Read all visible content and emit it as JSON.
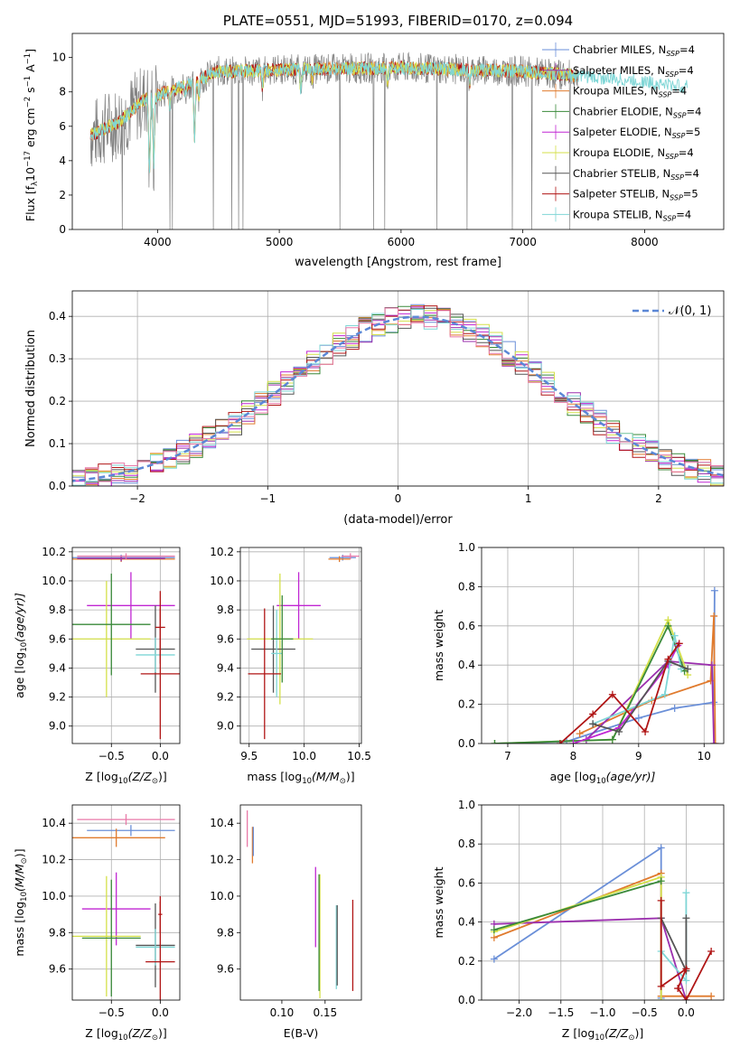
{
  "colors": {
    "Chabrier MILES": "#6a8fd8",
    "Salpeter MILES": "#9b2fae",
    "Kroupa MILES": "#e07b2e",
    "Chabrier ELODIE": "#3a8a3a",
    "Salpeter ELODIE": "#c026d3",
    "Kroupa ELODIE": "#d4e04a",
    "Chabrier STELIB": "#555555",
    "Salpeter STELIB": "#b01515",
    "Kroupa STELIB": "#7fd6d6",
    "extra_hist": "#e879a8",
    "gauss": "#5b87d6",
    "spectrum": "#808080"
  },
  "chart_data": [
    {
      "type": "line",
      "title": "PLATE=0551, MJD=51993, FIBERID=0170, z=0.094",
      "xlabel": "wavelength [Angstrom, rest frame]",
      "ylabel_parts": [
        "Flux [f",
        "λ",
        "10",
        "−17",
        " erg cm",
        "−2",
        " s",
        "−1",
        " A",
        "−1",
        "]"
      ],
      "xlim": [
        3300,
        8650
      ],
      "ylim": [
        0,
        11.4
      ],
      "xticks": [
        "4000",
        "5000",
        "6000",
        "7000",
        "8000"
      ],
      "yticks": [
        "0",
        "2",
        "4",
        "6",
        "8",
        "10"
      ],
      "legend_position": "right",
      "legend": [
        {
          "name": "Chabrier MILES",
          "nssp": "4"
        },
        {
          "name": "Salpeter MILES",
          "nssp": "4"
        },
        {
          "name": "Kroupa MILES",
          "nssp": "4"
        },
        {
          "name": "Chabrier ELODIE",
          "nssp": "4"
        },
        {
          "name": "Salpeter ELODIE",
          "nssp": "5"
        },
        {
          "name": "Kroupa ELODIE",
          "nssp": "4"
        },
        {
          "name": "Chabrier STELIB",
          "nssp": "4"
        },
        {
          "name": "Salpeter STELIB",
          "nssp": "5"
        },
        {
          "name": "Kroupa STELIB",
          "nssp": "4"
        }
      ],
      "legend_suffix": ", N",
      "legend_sub": "SSP",
      "continuum": [
        [
          3450,
          5.5
        ],
        [
          3500,
          5.6
        ],
        [
          3600,
          6.0
        ],
        [
          3700,
          6.3
        ],
        [
          3800,
          7.0
        ],
        [
          3900,
          7.6
        ],
        [
          4000,
          7.8
        ],
        [
          4100,
          8.1
        ],
        [
          4200,
          8.3
        ],
        [
          4300,
          8.6
        ],
        [
          4400,
          8.9
        ],
        [
          4500,
          9.2
        ],
        [
          4700,
          9.2
        ],
        [
          5000,
          9.3
        ],
        [
          5500,
          9.35
        ],
        [
          6000,
          9.4
        ],
        [
          6500,
          9.3
        ],
        [
          7000,
          9.2
        ],
        [
          7500,
          8.9
        ],
        [
          8000,
          8.6
        ],
        [
          8350,
          8.3
        ]
      ],
      "absorption_lines": [
        [
          3934,
          3.2
        ],
        [
          3969,
          3.8
        ],
        [
          4102,
          7.2
        ],
        [
          4227,
          7.6
        ],
        [
          4304,
          5.3
        ],
        [
          4340,
          7.7
        ],
        [
          4861,
          8.3
        ],
        [
          5175,
          8.2
        ],
        [
          5270,
          8.7
        ],
        [
          5890,
          8.6
        ],
        [
          6563,
          8.5
        ]
      ]
    },
    {
      "type": "histogram",
      "xlabel": "(data-model)/error",
      "ylabel": "Normed distribution",
      "xlim": [
        -2.5,
        2.5
      ],
      "ylim": [
        0,
        0.46
      ],
      "xticks": [
        "−2",
        "−1",
        "0",
        "1",
        "2"
      ],
      "yticks": [
        "0.0",
        "0.1",
        "0.2",
        "0.3",
        "0.4"
      ],
      "bin_width": 0.1,
      "legend": "𝒩(0, 1)",
      "gaussian": {
        "mean": 0.15,
        "sigma": 1.0
      }
    },
    {
      "type": "scatter",
      "xlabel_parts": [
        "Z [log",
        "10",
        "(Z/Z",
        "⊙",
        ")]"
      ],
      "ylabel_parts": [
        "age  [log",
        "10",
        "(age/yr)]"
      ],
      "xlim": [
        -0.9,
        0.2
      ],
      "ylim": [
        8.88,
        10.23
      ],
      "xticks": [
        "−0.5",
        "0.0"
      ],
      "yticks": [
        "9.0",
        "9.2",
        "9.4",
        "9.6",
        "9.8",
        "10.0",
        "10.2"
      ],
      "points": [
        {
          "series": "Chabrier MILES",
          "x": -0.4,
          "y": 10.16,
          "xerr": 0.55,
          "yerr": 0.02
        },
        {
          "series": "Kroupa MILES",
          "x": -0.4,
          "y": 10.15,
          "xerr": 0.55,
          "yerr": 0.02
        },
        {
          "series": "Salpeter MILES",
          "x": -0.4,
          "y": 10.155,
          "xerr": 0.45,
          "yerr": 0.02
        },
        {
          "series": "extra",
          "x": -0.35,
          "y": 10.17,
          "xerr": 0.5,
          "yerr": 0.02
        },
        {
          "series": "Salpeter ELODIE",
          "x": -0.3,
          "y": 9.83,
          "xerr": 0.45,
          "yerr": 0.23
        },
        {
          "series": "Kroupa ELODIE",
          "x": -0.55,
          "y": 9.6,
          "xerr": 0.45,
          "yerr": 0.4
        },
        {
          "series": "Chabrier ELODIE",
          "x": -0.5,
          "y": 9.7,
          "xerr": 0.4,
          "yerr": 0.35
        },
        {
          "series": "Chabrier STELIB",
          "x": -0.05,
          "y": 9.53,
          "xerr": 0.2,
          "yerr": 0.3
        },
        {
          "series": "Kroupa STELIB",
          "x": -0.05,
          "y": 9.49,
          "xerr": 0.2,
          "yerr": 0.12
        },
        {
          "series": "Salpeter STELIB",
          "x": 0.0,
          "y": 9.36,
          "xerr": 0.2,
          "yerr": 0.45
        },
        {
          "series": "Salpeter STELIB",
          "x": 0.0,
          "y": 9.68,
          "xerr": 0.05,
          "yerr": 0.25
        }
      ]
    },
    {
      "type": "scatter",
      "xlabel_parts": [
        "mass [log",
        "10",
        "(M/M",
        "⊙",
        ")]"
      ],
      "xlim": [
        9.42,
        10.52
      ],
      "ylim": [
        8.88,
        10.23
      ],
      "xticks": [
        "9.5",
        "10.0",
        "10.5"
      ],
      "yticks": [
        "9.0",
        "9.2",
        "9.4",
        "9.6",
        "9.8",
        "10.0",
        "10.2"
      ],
      "points": [
        {
          "series": "Chabrier MILES",
          "x": 10.35,
          "y": 10.16,
          "xerr": 0.12,
          "yerr": 0.02
        },
        {
          "series": "Kroupa MILES",
          "x": 10.32,
          "y": 10.15,
          "xerr": 0.1,
          "yerr": 0.02
        },
        {
          "series": "extra",
          "x": 10.42,
          "y": 10.17,
          "xerr": 0.08,
          "yerr": 0.02
        },
        {
          "series": "Salpeter ELODIE",
          "x": 9.95,
          "y": 9.83,
          "xerr": 0.2,
          "yerr": 0.23
        },
        {
          "series": "Kroupa ELODIE",
          "x": 9.78,
          "y": 9.6,
          "xerr": 0.3,
          "yerr": 0.45
        },
        {
          "series": "Chabrier STELIB",
          "x": 9.72,
          "y": 9.53,
          "xerr": 0.2,
          "yerr": 0.3
        },
        {
          "series": "Kroupa STELIB",
          "x": 9.75,
          "y": 9.5,
          "xerr": 0.05,
          "yerr": 0.3
        },
        {
          "series": "Salpeter STELIB",
          "x": 9.64,
          "y": 9.36,
          "xerr": 0.15,
          "yerr": 0.45
        },
        {
          "series": "Chabrier ELODIE",
          "x": 9.8,
          "y": 9.6,
          "xerr": 0.1,
          "yerr": 0.3
        }
      ]
    },
    {
      "type": "line",
      "xlabel_parts": [
        "age  [log",
        "10",
        "(age/yr)]"
      ],
      "ylabel": "mass weight",
      "xlim": [
        6.6,
        10.3
      ],
      "ylim": [
        0,
        1.0
      ],
      "xticks": [
        "7",
        "8",
        "9",
        "10"
      ],
      "yticks": [
        "0.0",
        "0.2",
        "0.4",
        "0.6",
        "0.8",
        "1.0"
      ],
      "series": [
        {
          "name": "Chabrier MILES",
          "points": [
            [
              6.8,
              0.0
            ],
            [
              7.9,
              0.01
            ],
            [
              9.0,
              0.13
            ],
            [
              9.55,
              0.18
            ],
            [
              10.15,
              0.21
            ],
            [
              10.16,
              0.78
            ]
          ]
        },
        {
          "name": "Kroupa MILES",
          "points": [
            [
              8.1,
              0.05
            ],
            [
              9.2,
              0.22
            ],
            [
              10.1,
              0.32
            ],
            [
              10.15,
              0.65
            ],
            [
              10.17,
              0.0
            ]
          ]
        },
        {
          "name": "Salpeter MILES",
          "points": [
            [
              8.2,
              0.02
            ],
            [
              9.45,
              0.42
            ],
            [
              10.12,
              0.4
            ],
            [
              10.15,
              0.0
            ]
          ]
        },
        {
          "name": "Kroupa ELODIE",
          "points": [
            [
              6.8,
              0.0
            ],
            [
              8.6,
              0.02
            ],
            [
              9.45,
              0.63
            ],
            [
              9.75,
              0.35
            ]
          ]
        },
        {
          "name": "Chabrier ELODIE",
          "points": [
            [
              6.8,
              0.0
            ],
            [
              8.6,
              0.02
            ],
            [
              9.45,
              0.6
            ],
            [
              9.7,
              0.37
            ]
          ]
        },
        {
          "name": "Salpeter ELODIE",
          "points": [
            [
              8.0,
              0.0
            ],
            [
              8.7,
              0.08
            ],
            [
              9.45,
              0.4
            ],
            [
              9.6,
              0.5
            ]
          ]
        },
        {
          "name": "Kroupa STELIB",
          "points": [
            [
              8.3,
              0.1
            ],
            [
              9.4,
              0.25
            ],
            [
              9.55,
              0.55
            ],
            [
              9.65,
              0.38
            ]
          ]
        },
        {
          "name": "Chabrier STELIB",
          "points": [
            [
              8.3,
              0.1
            ],
            [
              8.7,
              0.06
            ],
            [
              9.45,
              0.42
            ],
            [
              9.75,
              0.38
            ]
          ]
        },
        {
          "name": "Salpeter STELIB",
          "points": [
            [
              7.8,
              0.0
            ],
            [
              8.3,
              0.15
            ],
            [
              8.6,
              0.25
            ],
            [
              9.1,
              0.06
            ],
            [
              9.45,
              0.43
            ],
            [
              9.62,
              0.51
            ]
          ]
        }
      ]
    },
    {
      "type": "scatter",
      "xlabel_parts": [
        "Z [log",
        "10",
        "(Z/Z",
        "⊙",
        ")]"
      ],
      "ylabel_parts": [
        "mass [log",
        "10",
        "(M/M",
        "⊙",
        ")]"
      ],
      "xlim": [
        -0.9,
        0.2
      ],
      "ylim": [
        9.43,
        10.5
      ],
      "xticks": [
        "−0.5",
        "0.0"
      ],
      "yticks": [
        "9.6",
        "9.8",
        "10.0",
        "10.2",
        "10.4"
      ],
      "points": [
        {
          "series": "extra",
          "x": -0.35,
          "y": 10.42,
          "xerr": 0.5,
          "yerr": 0.03
        },
        {
          "series": "Chabrier MILES",
          "x": -0.3,
          "y": 10.36,
          "xerr": 0.45,
          "yerr": 0.03
        },
        {
          "series": "Kroupa MILES",
          "x": -0.45,
          "y": 10.32,
          "xerr": 0.5,
          "yerr": 0.05
        },
        {
          "series": "Salpeter ELODIE",
          "x": -0.45,
          "y": 9.93,
          "xerr": 0.35,
          "yerr": 0.2
        },
        {
          "series": "Kroupa ELODIE",
          "x": -0.55,
          "y": 9.78,
          "xerr": 0.35,
          "yerr": 0.33
        },
        {
          "series": "Chabrier ELODIE",
          "x": -0.5,
          "y": 9.77,
          "xerr": 0.3,
          "yerr": 0.32
        },
        {
          "series": "Chabrier STELIB",
          "x": -0.05,
          "y": 9.73,
          "xerr": 0.2,
          "yerr": 0.23
        },
        {
          "series": "Kroupa STELIB",
          "x": -0.05,
          "y": 9.72,
          "xerr": 0.2,
          "yerr": 0.1
        },
        {
          "series": "Salpeter STELIB",
          "x": 0.0,
          "y": 9.64,
          "xerr": 0.15,
          "yerr": 0.33
        },
        {
          "series": "Salpeter STELIB",
          "x": 0.0,
          "y": 9.9,
          "xerr": 0.02,
          "yerr": 0.1
        }
      ]
    },
    {
      "type": "scatter",
      "xlabel": "E(B-V)",
      "xlim": [
        0.052,
        0.192
      ],
      "ylim": [
        9.43,
        10.5
      ],
      "xticks": [
        "0.10",
        "0.15"
      ],
      "yticks": [
        "9.6",
        "9.8",
        "10.0",
        "10.2",
        "10.4"
      ],
      "points": [
        {
          "series": "extra",
          "x": 0.06,
          "y": 10.37,
          "xerr": 0,
          "yerr": 0.1
        },
        {
          "series": "Kroupa MILES",
          "x": 0.066,
          "y": 10.28,
          "xerr": 0,
          "yerr": 0.1
        },
        {
          "series": "Chabrier MILES",
          "x": 0.067,
          "y": 10.3,
          "xerr": 0,
          "yerr": 0.08
        },
        {
          "series": "Salpeter ELODIE",
          "x": 0.139,
          "y": 9.94,
          "xerr": 0,
          "yerr": 0.22
        },
        {
          "series": "Kroupa ELODIE",
          "x": 0.144,
          "y": 9.78,
          "xerr": 0,
          "yerr": 0.34
        },
        {
          "series": "Chabrier ELODIE",
          "x": 0.143,
          "y": 9.8,
          "xerr": 0,
          "yerr": 0.32
        },
        {
          "series": "Kroupa STELIB",
          "x": 0.163,
          "y": 9.72,
          "xerr": 0,
          "yerr": 0.23
        },
        {
          "series": "Chabrier STELIB",
          "x": 0.164,
          "y": 9.73,
          "xerr": 0,
          "yerr": 0.22
        },
        {
          "series": "Salpeter STELIB",
          "x": 0.182,
          "y": 9.73,
          "xerr": 0,
          "yerr": 0.25
        }
      ]
    },
    {
      "type": "line",
      "xlabel_parts": [
        "Z [log",
        "10",
        "(Z/Z",
        "⊙",
        ")]"
      ],
      "ylabel": "mass weight",
      "xlim": [
        -2.45,
        0.45
      ],
      "ylim": [
        0,
        1.0
      ],
      "xticks": [
        "−2.0",
        "−1.5",
        "−1.0",
        "−0.5",
        "0.0"
      ],
      "yticks": [
        "0.0",
        "0.2",
        "0.4",
        "0.6",
        "0.8",
        "1.0"
      ],
      "series": [
        {
          "name": "Chabrier MILES",
          "points": [
            [
              -2.3,
              0.21
            ],
            [
              -0.3,
              0.78
            ],
            [
              -0.3,
              0.01
            ]
          ]
        },
        {
          "name": "Kroupa MILES",
          "points": [
            [
              -2.3,
              0.32
            ],
            [
              -0.3,
              0.65
            ],
            [
              -0.3,
              0.02
            ],
            [
              0.3,
              0.02
            ]
          ]
        },
        {
          "name": "Salpeter MILES",
          "points": [
            [
              -2.3,
              0.39
            ],
            [
              -0.3,
              0.42
            ],
            [
              0.0,
              0.0
            ]
          ]
        },
        {
          "name": "Kroupa ELODIE",
          "points": [
            [
              -2.3,
              0.35
            ],
            [
              -0.3,
              0.63
            ],
            [
              -0.3,
              0.0
            ]
          ]
        },
        {
          "name": "Chabrier ELODIE",
          "points": [
            [
              -2.3,
              0.36
            ],
            [
              -0.3,
              0.61
            ]
          ]
        },
        {
          "name": "Kroupa STELIB",
          "points": [
            [
              -0.3,
              0.25
            ],
            [
              0.0,
              0.1
            ],
            [
              0.0,
              0.55
            ]
          ]
        },
        {
          "name": "Chabrier STELIB",
          "points": [
            [
              -0.3,
              0.42
            ],
            [
              0.0,
              0.15
            ],
            [
              0.0,
              0.42
            ]
          ]
        },
        {
          "name": "Salpeter STELIB",
          "points": [
            [
              -0.3,
              0.51
            ],
            [
              -0.3,
              0.07
            ],
            [
              0.0,
              0.16
            ],
            [
              -0.1,
              0.06
            ],
            [
              0.0,
              0.0
            ],
            [
              0.3,
              0.25
            ]
          ]
        }
      ]
    }
  ]
}
